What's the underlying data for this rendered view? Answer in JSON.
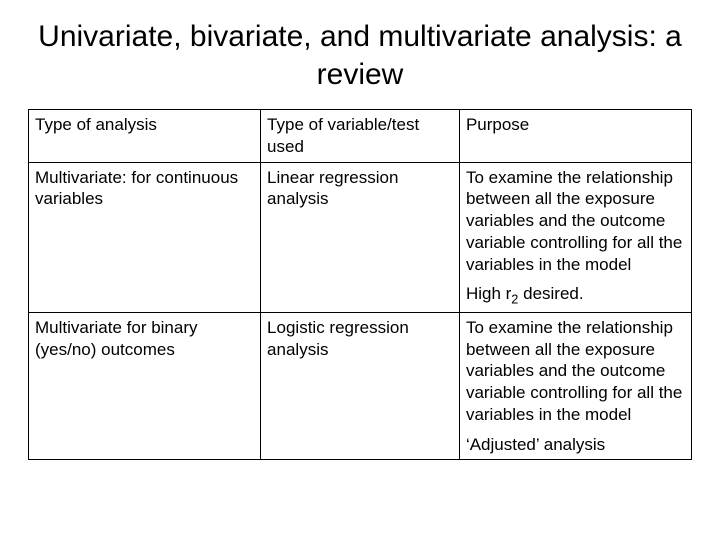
{
  "title": "Univariate, bivariate, and multivariate analysis: a review",
  "table": {
    "header": {
      "c1": "Type of analysis",
      "c2": "Type of variable/test used",
      "c3": "Purpose"
    },
    "row1": {
      "c1": "Multivariate: for continuous variables",
      "c2": "Linear regression analysis",
      "c3_p1": "To examine the relationship between all the exposure variables and the outcome variable controlling for all the variables in the model",
      "c3_p2a": "High r",
      "c3_p2sub": "2",
      "c3_p2b": " desired."
    },
    "row2": {
      "c1": "Multivariate for binary (yes/no) outcomes",
      "c2": "Logistic regression analysis",
      "c3_p1": "To examine the relationship between all the exposure variables and the outcome variable controlling for all the variables in the model",
      "c3_p2": "‘Adjusted’ analysis"
    }
  },
  "style": {
    "background": "#ffffff",
    "border_color": "#000000",
    "text_color": "#000000",
    "title_fontsize": 30,
    "cell_fontsize": 17
  }
}
